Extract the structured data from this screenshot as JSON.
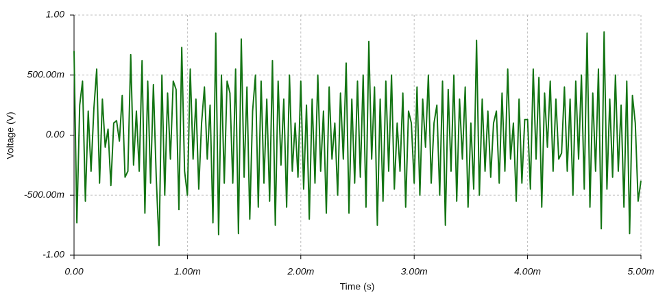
{
  "chart_data": {
    "type": "line",
    "x_label": "Time (s)",
    "y_label": "Voltage (V)",
    "color": "#137413",
    "grid": true,
    "xlim": [
      0,
      0.005
    ],
    "ylim": [
      -1,
      1
    ],
    "xticks": [
      {
        "value": 0,
        "label": "0.00"
      },
      {
        "value": 0.001,
        "label": "1.00m"
      },
      {
        "value": 0.002,
        "label": "2.00m"
      },
      {
        "value": 0.003,
        "label": "3.00m"
      },
      {
        "value": 0.004,
        "label": "4.00m"
      },
      {
        "value": 0.005,
        "label": "5.00m"
      }
    ],
    "yticks": [
      {
        "value": -1,
        "label": "-1.00"
      },
      {
        "value": -0.5,
        "label": "-500.00m"
      },
      {
        "value": 0,
        "label": "0.00"
      },
      {
        "value": 0.5,
        "label": "500.00m"
      },
      {
        "value": 1,
        "label": "1.00"
      }
    ],
    "x": [
      0,
      2.5e-05,
      5e-05,
      7.5e-05,
      0.0001,
      0.000125,
      0.00015,
      0.000175,
      0.0002,
      0.000225,
      0.00025,
      0.000275,
      0.0003,
      0.000325,
      0.00035,
      0.000375,
      0.0004,
      0.000425,
      0.00045,
      0.000475,
      0.0005,
      0.000525,
      0.00055,
      0.000575,
      0.0006,
      0.000625,
      0.00065,
      0.000675,
      0.0007,
      0.000725,
      0.00075,
      0.000775,
      0.0008,
      0.000825,
      0.00085,
      0.000875,
      0.0009,
      0.000925,
      0.00095,
      0.000975,
      0.001,
      0.001025,
      0.00105,
      0.001075,
      0.0011,
      0.001125,
      0.00115,
      0.001175,
      0.0012,
      0.001225,
      0.00125,
      0.001275,
      0.0013,
      0.001325,
      0.00135,
      0.001375,
      0.0014,
      0.001425,
      0.00145,
      0.001475,
      0.0015,
      0.001525,
      0.00155,
      0.001575,
      0.0016,
      0.001625,
      0.00165,
      0.001675,
      0.0017,
      0.001725,
      0.00175,
      0.001775,
      0.0018,
      0.001825,
      0.00185,
      0.001875,
      0.0019,
      0.001925,
      0.00195,
      0.001975,
      0.002,
      0.002025,
      0.00205,
      0.002075,
      0.0021,
      0.002125,
      0.00215,
      0.002175,
      0.0022,
      0.002225,
      0.00225,
      0.002275,
      0.0023,
      0.002325,
      0.00235,
      0.002375,
      0.0024,
      0.002425,
      0.00245,
      0.002475,
      0.0025,
      0.002525,
      0.00255,
      0.002575,
      0.0026,
      0.002625,
      0.00265,
      0.002675,
      0.0027,
      0.002725,
      0.00275,
      0.002775,
      0.0028,
      0.002825,
      0.00285,
      0.002875,
      0.0029,
      0.002925,
      0.00295,
      0.002975,
      0.003,
      0.003025,
      0.00305,
      0.003075,
      0.0031,
      0.003125,
      0.00315,
      0.003175,
      0.0032,
      0.003225,
      0.00325,
      0.003275,
      0.0033,
      0.003325,
      0.00335,
      0.003375,
      0.0034,
      0.003425,
      0.00345,
      0.003475,
      0.0035,
      0.003525,
      0.00355,
      0.003575,
      0.0036,
      0.003625,
      0.00365,
      0.003675,
      0.0037,
      0.003725,
      0.00375,
      0.003775,
      0.0038,
      0.003825,
      0.00385,
      0.003875,
      0.0039,
      0.003925,
      0.00395,
      0.003975,
      0.004,
      0.004025,
      0.00405,
      0.004075,
      0.0041,
      0.004125,
      0.00415,
      0.004175,
      0.0042,
      0.004225,
      0.00425,
      0.004275,
      0.0043,
      0.004325,
      0.00435,
      0.004375,
      0.0044,
      0.004425,
      0.00445,
      0.004475,
      0.0045,
      0.004525,
      0.00455,
      0.004575,
      0.0046,
      0.004625,
      0.00465,
      0.004675,
      0.0047,
      0.004725,
      0.00475,
      0.004775,
      0.0048,
      0.004825,
      0.00485,
      0.004875,
      0.0049,
      0.004925,
      0.00495,
      0.004975,
      0.005
    ],
    "values": [
      0.7,
      -0.73,
      0.25,
      0.45,
      -0.55,
      0.2,
      -0.3,
      0.22,
      0.55,
      -0.4,
      0.3,
      -0.1,
      0.05,
      -0.42,
      0.1,
      0.12,
      -0.05,
      0.33,
      -0.35,
      -0.3,
      0.67,
      -0.25,
      0.2,
      -0.3,
      0.62,
      -0.65,
      0.45,
      -0.4,
      0.42,
      -0.35,
      -0.92,
      0.5,
      -0.5,
      0.35,
      -0.2,
      0.45,
      0.38,
      -0.62,
      0.73,
      -0.3,
      -0.5,
      0.55,
      -0.2,
      0.3,
      -0.45,
      0.1,
      0.4,
      -0.2,
      0.25,
      -0.73,
      0.85,
      -0.83,
      0.5,
      -0.4,
      0.45,
      0.35,
      -0.4,
      0.55,
      -0.82,
      0.8,
      -0.35,
      0.4,
      -0.7,
      0.2,
      0.5,
      -0.6,
      0.45,
      -0.4,
      0.3,
      -0.55,
      0.62,
      -0.75,
      0.45,
      -0.25,
      0.3,
      -0.6,
      0.5,
      -0.3,
      0.1,
      -0.35,
      0.45,
      -0.45,
      0.25,
      -0.7,
      0.3,
      -0.4,
      0.5,
      -0.3,
      0.2,
      -0.65,
      0.4,
      -0.2,
      0.1,
      -0.5,
      0.35,
      -0.2,
      0.6,
      -0.65,
      0.3,
      -0.4,
      0.45,
      -0.35,
      0.5,
      -0.6,
      0.78,
      -0.2,
      0.4,
      -0.75,
      0.3,
      -0.55,
      0.45,
      -0.3,
      0.5,
      -0.45,
      0.1,
      -0.3,
      0.35,
      -0.6,
      0.2,
      0.1,
      -0.4,
      0.4,
      -0.5,
      0.3,
      -0.1,
      0.5,
      -0.4,
      0.1,
      0.25,
      -0.5,
      0.45,
      -0.75,
      0.38,
      -0.3,
      0.5,
      -0.55,
      0.3,
      -0.2,
      0.4,
      -0.6,
      0.1,
      -0.45,
      0.79,
      -0.5,
      0.3,
      -0.3,
      0.2,
      -0.35,
      0.1,
      0.2,
      -0.4,
      0.35,
      -0.3,
      0.55,
      -0.2,
      0.1,
      -0.55,
      0.3,
      -0.4,
      0.13,
      0.13,
      -0.45,
      0.55,
      -0.2,
      0.48,
      -0.6,
      0.35,
      -0.1,
      0.45,
      -0.3,
      0.3,
      -0.2,
      -0.15,
      0.4,
      -0.3,
      0.3,
      -0.5,
      0.45,
      -0.2,
      0.5,
      -0.45,
      0.85,
      -0.6,
      0.35,
      -0.3,
      0.55,
      -0.78,
      0.86,
      -0.45,
      0.3,
      -0.35,
      0.5,
      -0.3,
      0.25,
      -0.6,
      0.45,
      -0.82,
      0.33,
      0.1,
      -0.55,
      -0.38
    ]
  }
}
